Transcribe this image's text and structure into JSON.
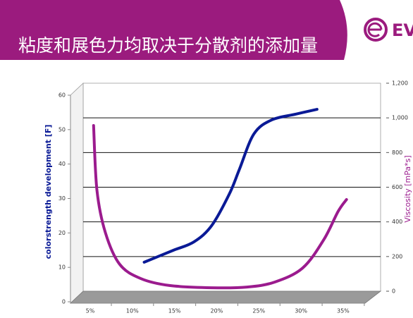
{
  "header": {
    "title": "粘度和展色力均取决于分散剂的添加量",
    "logo_text": "EV"
  },
  "chart_data": {
    "type": "line",
    "ylabel": "colorstrength development [F]",
    "y2label": "Viscosity [mPa*s]",
    "xlim": [
      2.66,
      37.6
    ],
    "xticks": [
      {
        "value": 5,
        "label": "5%"
      },
      {
        "value": 10,
        "label": "10%"
      },
      {
        "value": 15,
        "label": "15%"
      },
      {
        "value": 20,
        "label": "20%"
      },
      {
        "value": 25,
        "label": "25%"
      },
      {
        "value": 30,
        "label": "30%"
      },
      {
        "value": 35,
        "label": "35%"
      }
    ],
    "ylim": [
      0,
      60
    ],
    "yticks": [
      0,
      10,
      20,
      30,
      40,
      50,
      60
    ],
    "y2lim": [
      0,
      1200
    ],
    "y2ticks": [
      0,
      200,
      400,
      600,
      800,
      {
        "value": 1000,
        "label": "1,000"
      },
      {
        "value": 1200,
        "label": "1,200"
      }
    ],
    "grid": true,
    "series": [
      {
        "color": "#0a1a96",
        "x": [
          11.4,
          14.8,
          17.3,
          19.4,
          21.5,
          22.7,
          24.4,
          26.5,
          29.4,
          31.9
        ],
        "values": [
          11.5,
          14.9,
          17.4,
          22.1,
          31.3,
          38.5,
          48.7,
          52.8,
          54.5,
          55.9
        ]
      },
      {
        "color": "#9b1b8e",
        "axis": "y2",
        "x": [
          5.4,
          5.8,
          6.8,
          8.5,
          11.0,
          14.4,
          19.4,
          23.6,
          26.9,
          30.2,
          32.7,
          34.4,
          35.4
        ],
        "values": [
          956,
          582,
          338,
          155,
          73,
          33,
          20,
          24,
          53,
          134,
          297,
          460,
          529
        ]
      }
    ]
  }
}
